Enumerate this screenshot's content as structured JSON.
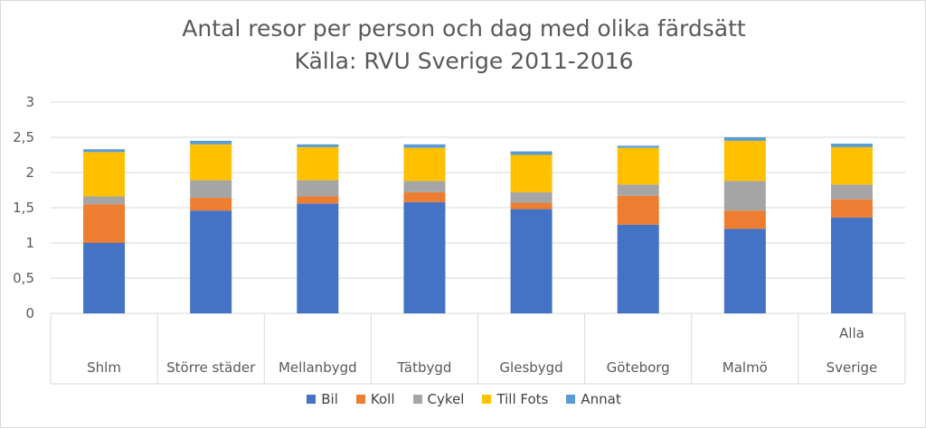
{
  "chart_data": {
    "type": "bar",
    "stacked": true,
    "title": "Antal resor per person och dag med olika färdsätt",
    "subtitle": "Källa: RVU Sverige 2011-2016",
    "categories": [
      [
        "Shlm"
      ],
      [
        "Större städer"
      ],
      [
        "Mellanbygd"
      ],
      [
        "Tätbygd"
      ],
      [
        "Glesbygd"
      ],
      [
        "Göteborg"
      ],
      [
        "Malmö"
      ],
      [
        "Alla",
        "Sverige"
      ]
    ],
    "series": [
      {
        "name": "Bil",
        "color": "#4472c4",
        "values": [
          1.0,
          1.46,
          1.56,
          1.58,
          1.48,
          1.26,
          1.2,
          1.36
        ]
      },
      {
        "name": "Koll",
        "color": "#ed7d31",
        "values": [
          0.55,
          0.18,
          0.1,
          0.14,
          0.09,
          0.41,
          0.26,
          0.26
        ]
      },
      {
        "name": "Cykel",
        "color": "#a5a5a5",
        "values": [
          0.11,
          0.25,
          0.23,
          0.16,
          0.15,
          0.16,
          0.42,
          0.21
        ]
      },
      {
        "name": "Till Fots",
        "color": "#ffc000",
        "values": [
          0.63,
          0.51,
          0.47,
          0.47,
          0.53,
          0.52,
          0.57,
          0.53
        ]
      },
      {
        "name": "Annat",
        "color": "#5b9bd5",
        "values": [
          0.04,
          0.05,
          0.04,
          0.05,
          0.05,
          0.03,
          0.05,
          0.05
        ]
      }
    ],
    "ylim": [
      0,
      3
    ],
    "yticks": [
      "0",
      "0,5",
      "1",
      "1,5",
      "2",
      "2,5",
      "3"
    ],
    "grid": true,
    "legend_position": "bottom"
  }
}
